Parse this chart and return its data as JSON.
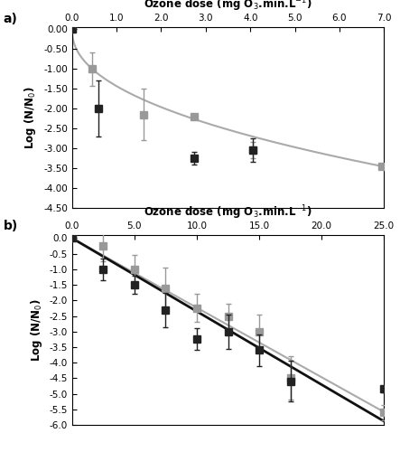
{
  "panel_a": {
    "gray_points_x": [
      0.0,
      0.45,
      1.6,
      2.75,
      4.05,
      6.95
    ],
    "gray_points_y": [
      0.0,
      -1.0,
      -2.15,
      -2.2,
      -3.05,
      -3.45
    ],
    "gray_yerr": [
      0.0,
      0.42,
      0.65,
      0.0,
      0.2,
      0.0
    ],
    "black_points_x": [
      0.0,
      0.6,
      2.75,
      4.05
    ],
    "black_points_y": [
      0.0,
      -2.0,
      -3.25,
      -3.05
    ],
    "black_yerr": [
      0.0,
      0.7,
      0.15,
      0.3
    ],
    "curve_color": "#aaaaaa",
    "curve_n": 0.46,
    "curve_k": 2.05,
    "xlim": [
      0.0,
      7.0
    ],
    "ylim": [
      -4.5,
      0.05
    ],
    "xticks": [
      0.0,
      1.0,
      2.0,
      3.0,
      4.0,
      5.0,
      6.0,
      7.0
    ],
    "yticks": [
      0.0,
      -0.5,
      -1.0,
      -1.5,
      -2.0,
      -2.5,
      -3.0,
      -3.5,
      -4.0,
      -4.5
    ],
    "xlabel": "Ozone dose (mg O$_3$.min.L$^{-1}$)",
    "ylabel": "Log (N/N$_0$)",
    "label": "a)"
  },
  "panel_b": {
    "gray_points_x": [
      0.0,
      2.5,
      5.0,
      7.5,
      10.0,
      12.5,
      15.0,
      17.5,
      25.0
    ],
    "gray_points_y": [
      0.0,
      -0.25,
      -1.0,
      -1.6,
      -2.25,
      -2.5,
      -3.0,
      -4.5,
      -5.6
    ],
    "gray_yerr": [
      0.0,
      0.5,
      0.45,
      0.65,
      0.45,
      0.4,
      0.55,
      0.7,
      0.25
    ],
    "black_points_x": [
      0.0,
      2.5,
      5.0,
      7.5,
      10.0,
      12.5,
      15.0,
      17.5,
      25.0
    ],
    "black_points_y": [
      0.0,
      -1.0,
      -1.5,
      -2.3,
      -3.25,
      -3.0,
      -3.6,
      -4.6,
      -4.85
    ],
    "black_yerr": [
      0.0,
      0.35,
      0.3,
      0.55,
      0.35,
      0.55,
      0.5,
      0.65,
      0.1
    ],
    "gray_slope": -0.224,
    "black_slope": -0.208,
    "gray_line_color": "#aaaaaa",
    "black_line_color": "#111111",
    "xlim": [
      0.0,
      25.0
    ],
    "ylim": [
      -6.0,
      0.1
    ],
    "xticks": [
      0.0,
      5.0,
      10.0,
      15.0,
      20.0,
      25.0
    ],
    "yticks": [
      0.0,
      -0.5,
      -1.0,
      -1.5,
      -2.0,
      -2.5,
      -3.0,
      -3.5,
      -4.0,
      -4.5,
      -5.0,
      -5.5,
      -6.0
    ],
    "xlabel": "Ozone dose (mg O$_3$.min.L$^{-1}$)",
    "ylabel": "Log (N/N$_0$)",
    "label": "b)"
  },
  "marker_color_gray": "#999999",
  "marker_color_black": "#222222",
  "marker_size": 6,
  "elinewidth": 1.0,
  "capsize": 2,
  "figure_bg": "#ffffff",
  "axes_bg": "#ffffff"
}
